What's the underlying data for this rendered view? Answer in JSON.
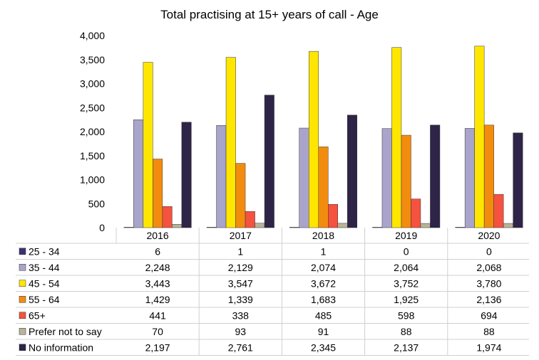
{
  "chart_data": {
    "type": "bar",
    "title": "Total practising at 15+ years of call - Age",
    "categories": [
      "2016",
      "2017",
      "2018",
      "2019",
      "2020"
    ],
    "ylim": [
      0,
      4000
    ],
    "yticks": [
      "0",
      "500",
      "1,000",
      "1,500",
      "2,000",
      "2,500",
      "3,000",
      "3,500",
      "4,000"
    ],
    "grid": false,
    "legend": "data-table",
    "series": [
      {
        "name": "25 - 34",
        "color": "#3F3170",
        "values": [
          6,
          1,
          1,
          0,
          0
        ],
        "labels": [
          "6",
          "1",
          "1",
          "0",
          "0"
        ]
      },
      {
        "name": "35 - 44",
        "color": "#A9A4CB",
        "values": [
          2248,
          2129,
          2074,
          2064,
          2068
        ],
        "labels": [
          "2,248",
          "2,129",
          "2,074",
          "2,064",
          "2,068"
        ]
      },
      {
        "name": "45 - 54",
        "color": "#FFE600",
        "values": [
          3443,
          3547,
          3672,
          3752,
          3780
        ],
        "labels": [
          "3,443",
          "3,547",
          "3,672",
          "3,752",
          "3,780"
        ]
      },
      {
        "name": "55 - 64",
        "color": "#F28C0F",
        "values": [
          1429,
          1339,
          1683,
          1925,
          2136
        ],
        "labels": [
          "1,429",
          "1,339",
          "1,683",
          "1,925",
          "2,136"
        ]
      },
      {
        "name": "65+",
        "color": "#F5523F",
        "values": [
          441,
          338,
          485,
          598,
          694
        ],
        "labels": [
          "441",
          "338",
          "485",
          "598",
          "694"
        ]
      },
      {
        "name": "Prefer not to say",
        "color": "#B9B39A",
        "values": [
          70,
          93,
          91,
          88,
          88
        ],
        "labels": [
          "70",
          "93",
          "91",
          "88",
          "88"
        ]
      },
      {
        "name": "No information",
        "color": "#2E2447",
        "values": [
          2197,
          2761,
          2345,
          2137,
          1974
        ],
        "labels": [
          "2,197",
          "2,761",
          "2,345",
          "2,137",
          "1,974"
        ]
      }
    ]
  }
}
